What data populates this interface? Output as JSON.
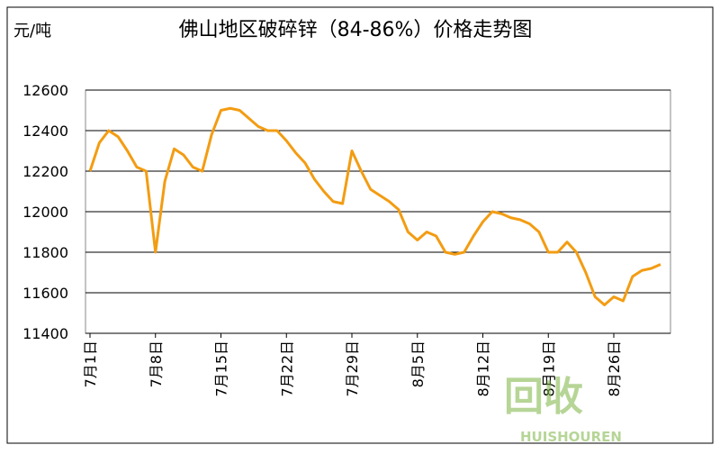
{
  "chart_data": {
    "type": "line",
    "title": "佛山地区破碎锌（84-86%）价格走势图",
    "y_label": "元/吨",
    "categories": [
      "7月1日",
      null,
      null,
      null,
      null,
      null,
      null,
      "7月8日",
      null,
      null,
      null,
      null,
      null,
      null,
      "7月15日",
      null,
      null,
      null,
      null,
      null,
      null,
      "7月22日",
      null,
      null,
      null,
      null,
      null,
      null,
      "7月29日",
      null,
      null,
      null,
      null,
      null,
      null,
      "8月5日",
      null,
      null,
      null,
      null,
      null,
      null,
      "8月12日",
      null,
      null,
      null,
      null,
      null,
      null,
      "8月19日",
      null,
      null,
      null,
      null,
      null,
      null,
      "8月26日",
      null,
      null,
      null,
      null,
      null
    ],
    "series": [
      {
        "name": "佛山地区破碎锌",
        "color": "#f39c12",
        "values": [
          12200,
          12340,
          12400,
          12370,
          12300,
          12220,
          12200,
          11800,
          12150,
          12310,
          12280,
          12220,
          12200,
          12380,
          12500,
          12510,
          12500,
          12460,
          12420,
          12400,
          12400,
          12350,
          12290,
          12240,
          12160,
          12100,
          12050,
          12040,
          12300,
          12200,
          12110,
          12080,
          12050,
          12010,
          11900,
          11860,
          11900,
          11880,
          11800,
          11790,
          11800,
          11880,
          11950,
          12000,
          11990,
          11970,
          11960,
          11940,
          11900,
          11800,
          11800,
          11850,
          11800,
          11700,
          11580,
          11540,
          11580,
          11560,
          11680,
          11710,
          11720,
          11740
        ]
      }
    ],
    "ylim": [
      11400,
      12600
    ],
    "yticks": [
      11400,
      11600,
      11800,
      12000,
      12200,
      12400,
      12600
    ],
    "grid": true,
    "watermark": [
      "回收",
      "HUISHOUREN"
    ]
  }
}
